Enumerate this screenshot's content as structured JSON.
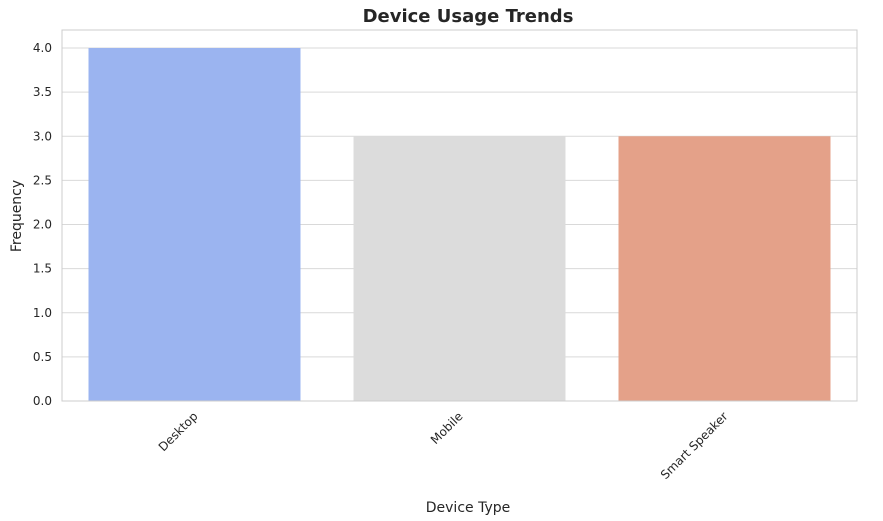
{
  "chart_data": {
    "type": "bar",
    "title": "Device Usage Trends",
    "xlabel": "Device Type",
    "ylabel": "Frequency",
    "categories": [
      "Desktop",
      "Mobile",
      "Smart Speaker"
    ],
    "values": [
      4,
      3,
      3
    ],
    "colors": [
      "#9bb4f0",
      "#dcdcdc",
      "#e4a189"
    ],
    "ylim": [
      0,
      4.0
    ],
    "yticks": [
      "0.0",
      "0.5",
      "1.0",
      "1.5",
      "2.0",
      "2.5",
      "3.0",
      "3.5",
      "4.0"
    ],
    "grid": "horizontal",
    "legend": "none"
  }
}
